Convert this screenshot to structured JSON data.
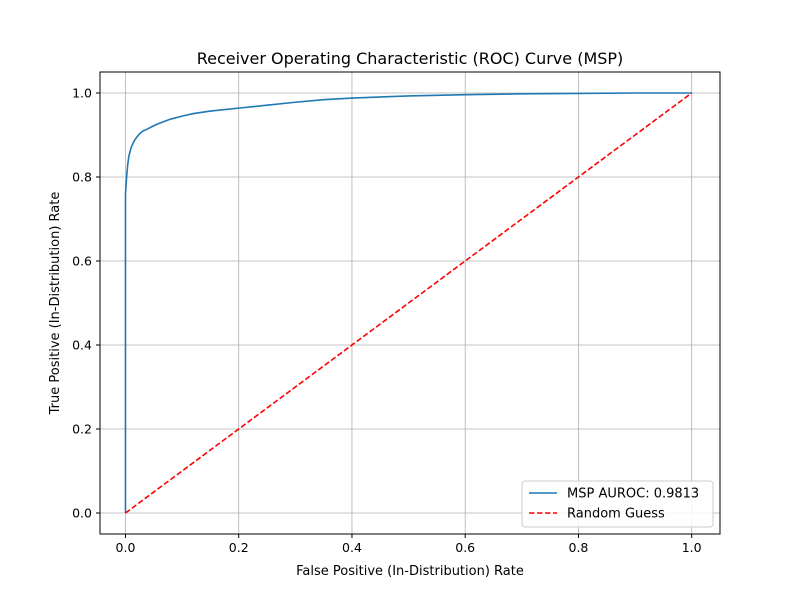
{
  "chart_data": {
    "type": "line",
    "title": "Receiver Operating Characteristic (ROC) Curve (MSP)",
    "xlabel": "False Positive (In-Distribution) Rate",
    "ylabel": "True Positive (In-Distribution) Rate",
    "xlim": [
      -0.045,
      1.05
    ],
    "ylim": [
      -0.05,
      1.05
    ],
    "xticks": [
      0.0,
      0.2,
      0.4,
      0.6,
      0.8,
      1.0
    ],
    "yticks": [
      0.0,
      0.2,
      0.4,
      0.6,
      0.8,
      1.0
    ],
    "xtick_labels": [
      "0.0",
      "0.2",
      "0.4",
      "0.6",
      "0.8",
      "1.0"
    ],
    "ytick_labels": [
      "0.0",
      "0.2",
      "0.4",
      "0.6",
      "0.8",
      "1.0"
    ],
    "grid": true,
    "legend_position": "bottom-right",
    "series": [
      {
        "name": "MSP AUROC: 0.9813",
        "color": "#1f77b4",
        "style": "solid",
        "x": [
          0.0,
          0.0,
          0.002,
          0.004,
          0.006,
          0.008,
          0.01,
          0.015,
          0.02,
          0.025,
          0.03,
          0.04,
          0.05,
          0.06,
          0.07,
          0.08,
          0.1,
          0.12,
          0.15,
          0.2,
          0.25,
          0.3,
          0.35,
          0.4,
          0.5,
          0.6,
          0.7,
          0.8,
          0.9,
          1.0
        ],
        "y": [
          0.0,
          0.76,
          0.8,
          0.83,
          0.85,
          0.86,
          0.87,
          0.885,
          0.895,
          0.903,
          0.909,
          0.915,
          0.922,
          0.928,
          0.933,
          0.938,
          0.945,
          0.951,
          0.957,
          0.964,
          0.971,
          0.978,
          0.984,
          0.988,
          0.993,
          0.996,
          0.998,
          0.999,
          1.0,
          1.0
        ]
      },
      {
        "name": "Random Guess",
        "color": "#ff0000",
        "style": "dashed",
        "x": [
          0.0,
          1.0
        ],
        "y": [
          0.0,
          1.0
        ]
      }
    ]
  }
}
